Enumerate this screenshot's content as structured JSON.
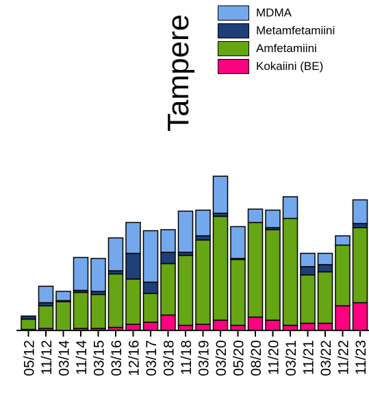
{
  "chart_data": {
    "type": "bar",
    "stacked": true,
    "title": "Tampere",
    "xlabel": "",
    "ylabel": "",
    "categories": [
      "05/12",
      "11/12",
      "03/14",
      "11/14",
      "03/15",
      "03/16",
      "12/16",
      "03/17",
      "03/18",
      "11/18",
      "03/19",
      "03/20",
      "05/20",
      "08/20",
      "11/20",
      "03/21",
      "11/21",
      "03/22",
      "11/22",
      "11/23"
    ],
    "series": [
      {
        "name": "Kokaiini (BE)",
        "color": "#ff0080",
        "values": [
          1,
          2,
          0,
          2,
          2,
          3,
          6,
          8,
          15,
          5,
          6,
          10,
          5,
          13,
          10,
          5,
          7,
          7,
          24,
          27
        ]
      },
      {
        "name": "Amfetamiini",
        "color": "#66a514",
        "values": [
          10,
          22,
          28,
          35,
          33,
          52,
          44,
          28,
          50,
          68,
          82,
          101,
          64,
          92,
          88,
          104,
          47,
          50,
          59,
          73
        ]
      },
      {
        "name": "Metamfetamiini",
        "color": "#1e3f78",
        "values": [
          3,
          3,
          1,
          2,
          3,
          3,
          25,
          11,
          11,
          3,
          4,
          3,
          1,
          0,
          2,
          0,
          8,
          7,
          0,
          4
        ]
      },
      {
        "name": "MDMA",
        "color": "#74a8ed",
        "values": [
          0,
          16,
          9,
          32,
          32,
          32,
          30,
          50,
          22,
          40,
          25,
          36,
          31,
          13,
          17,
          21,
          13,
          11,
          9,
          23
        ]
      }
    ],
    "ylim": [
      0,
      160
    ],
    "legend_position": "top-right",
    "grid": false
  }
}
